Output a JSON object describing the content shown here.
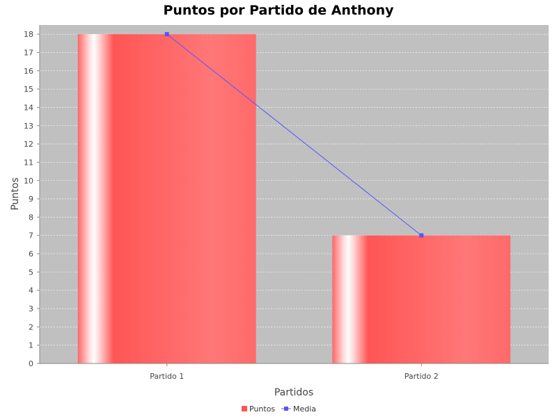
{
  "chart_data": {
    "type": "bar",
    "title": "Puntos por Partido de Anthony",
    "xlabel": "Partidos",
    "ylabel": "Puntos",
    "categories": [
      "Partido 1",
      "Partido 2"
    ],
    "series": [
      {
        "name": "Puntos",
        "type": "bar",
        "values": [
          18,
          7
        ],
        "color": "#ff5555"
      },
      {
        "name": "Media",
        "type": "line",
        "values": [
          18,
          7
        ],
        "color": "#5555ff"
      }
    ],
    "ylim": [
      0,
      18.5
    ],
    "yticks": [
      "0",
      "1",
      "2",
      "3",
      "4",
      "5",
      "6",
      "7",
      "8",
      "9",
      "10",
      "11",
      "12",
      "13",
      "14",
      "15",
      "16",
      "17",
      "18"
    ],
    "grid": true,
    "legend_position": "bottom-center",
    "plot_background": "#c0c0c0"
  }
}
